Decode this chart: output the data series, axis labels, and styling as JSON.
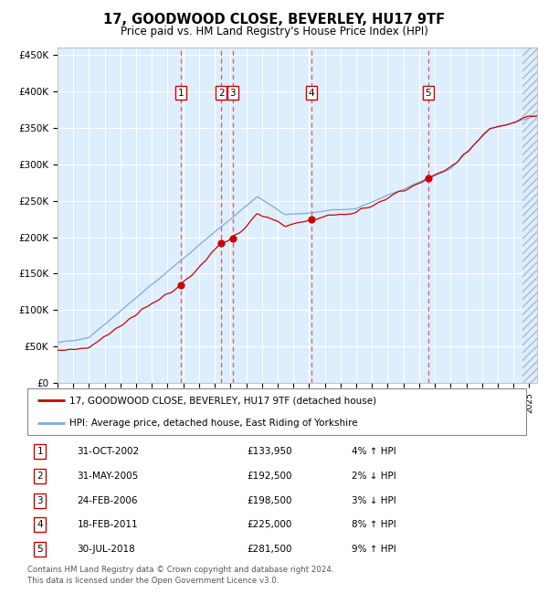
{
  "title": "17, GOODWOOD CLOSE, BEVERLEY, HU17 9TF",
  "subtitle": "Price paid vs. HM Land Registry's House Price Index (HPI)",
  "legend_line1": "17, GOODWOOD CLOSE, BEVERLEY, HU17 9TF (detached house)",
  "legend_line2": "HPI: Average price, detached house, East Riding of Yorkshire",
  "footer1": "Contains HM Land Registry data © Crown copyright and database right 2024.",
  "footer2": "This data is licensed under the Open Government Licence v3.0.",
  "transactions": [
    {
      "num": 1,
      "date": "31-OCT-2002",
      "price": 133950,
      "pct": "4%",
      "dir": "↑",
      "decimal_date": 2002.833
    },
    {
      "num": 2,
      "date": "31-MAY-2005",
      "price": 192500,
      "pct": "2%",
      "dir": "↓",
      "decimal_date": 2005.417
    },
    {
      "num": 3,
      "date": "24-FEB-2006",
      "price": 198500,
      "pct": "3%",
      "dir": "↓",
      "decimal_date": 2006.15
    },
    {
      "num": 4,
      "date": "18-FEB-2011",
      "price": 225000,
      "pct": "8%",
      "dir": "↑",
      "decimal_date": 2011.13
    },
    {
      "num": 5,
      "date": "30-JUL-2018",
      "price": 281500,
      "pct": "9%",
      "dir": "↑",
      "decimal_date": 2018.58
    }
  ],
  "ylim": [
    0,
    460000
  ],
  "yticks": [
    0,
    50000,
    100000,
    150000,
    200000,
    250000,
    300000,
    350000,
    400000,
    450000
  ],
  "ytick_labels": [
    "£0",
    "£50K",
    "£100K",
    "£150K",
    "£200K",
    "£250K",
    "£300K",
    "£350K",
    "£400K",
    "£450K"
  ],
  "xlim_start": 1995.0,
  "xlim_end": 2025.5,
  "red_line_color": "#cc0000",
  "blue_line_color": "#7aaddd",
  "bg_color": "#ddeeff",
  "grid_color": "#ffffff",
  "transaction_box_color": "#cc0000",
  "dashed_line_color": "#dd4444"
}
